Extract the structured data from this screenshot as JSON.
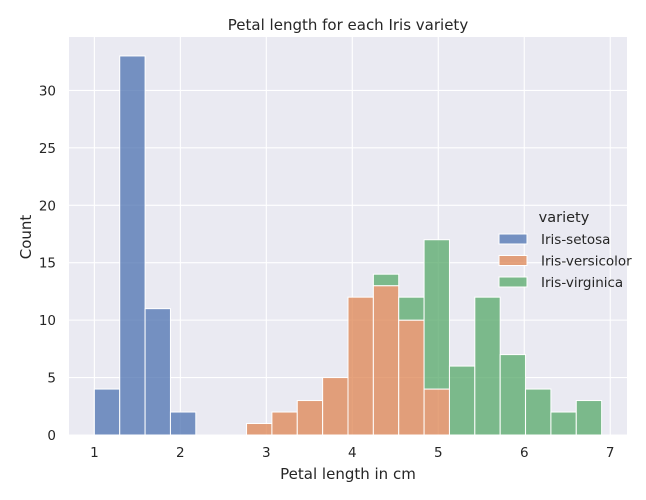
{
  "chart_data": {
    "type": "bar",
    "subtype": "stacked histogram",
    "title": "Petal length for each Iris variety",
    "xlabel": "Petal length in cm",
    "ylabel": "Count",
    "xlim": [
      0.705,
      7.195
    ],
    "ylim": [
      0,
      34.65
    ],
    "x_ticks": [
      1,
      2,
      3,
      4,
      5,
      6,
      7
    ],
    "y_ticks": [
      0,
      5,
      10,
      15,
      20,
      25,
      30
    ],
    "grid": true,
    "legend": {
      "title": "variety",
      "placement": "right"
    },
    "bins": [
      [
        1.0,
        1.295
      ],
      [
        1.295,
        1.59
      ],
      [
        1.59,
        1.885
      ],
      [
        1.885,
        2.18
      ],
      [
        2.18,
        2.475
      ],
      [
        2.475,
        2.77
      ],
      [
        2.77,
        3.065
      ],
      [
        3.065,
        3.36
      ],
      [
        3.36,
        3.655
      ],
      [
        3.655,
        3.95
      ],
      [
        3.95,
        4.245
      ],
      [
        4.245,
        4.54
      ],
      [
        4.54,
        4.835
      ],
      [
        4.835,
        5.13
      ],
      [
        5.13,
        5.425
      ],
      [
        5.425,
        5.72
      ],
      [
        5.72,
        6.015
      ],
      [
        6.015,
        6.31
      ],
      [
        6.31,
        6.605
      ],
      [
        6.605,
        6.9
      ]
    ],
    "series": [
      {
        "name": "Iris-setosa",
        "color": "#4c72b0",
        "values": [
          4,
          33,
          11,
          2,
          0,
          0,
          0,
          0,
          0,
          0,
          0,
          0,
          0,
          0,
          0,
          0,
          0,
          0,
          0,
          0
        ]
      },
      {
        "name": "Iris-versicolor",
        "color": "#dd8452",
        "values": [
          0,
          0,
          0,
          0,
          0,
          0,
          1,
          2,
          3,
          5,
          12,
          13,
          10,
          4,
          0,
          0,
          0,
          0,
          0,
          0
        ]
      },
      {
        "name": "Iris-virginica",
        "color": "#55a868",
        "values": [
          0,
          0,
          0,
          0,
          0,
          0,
          0,
          0,
          0,
          0,
          0,
          1,
          2,
          13,
          6,
          12,
          7,
          4,
          2,
          3
        ]
      }
    ]
  },
  "colors": {
    "plot_background": "#eaeaf2",
    "grid": "#ffffff"
  }
}
